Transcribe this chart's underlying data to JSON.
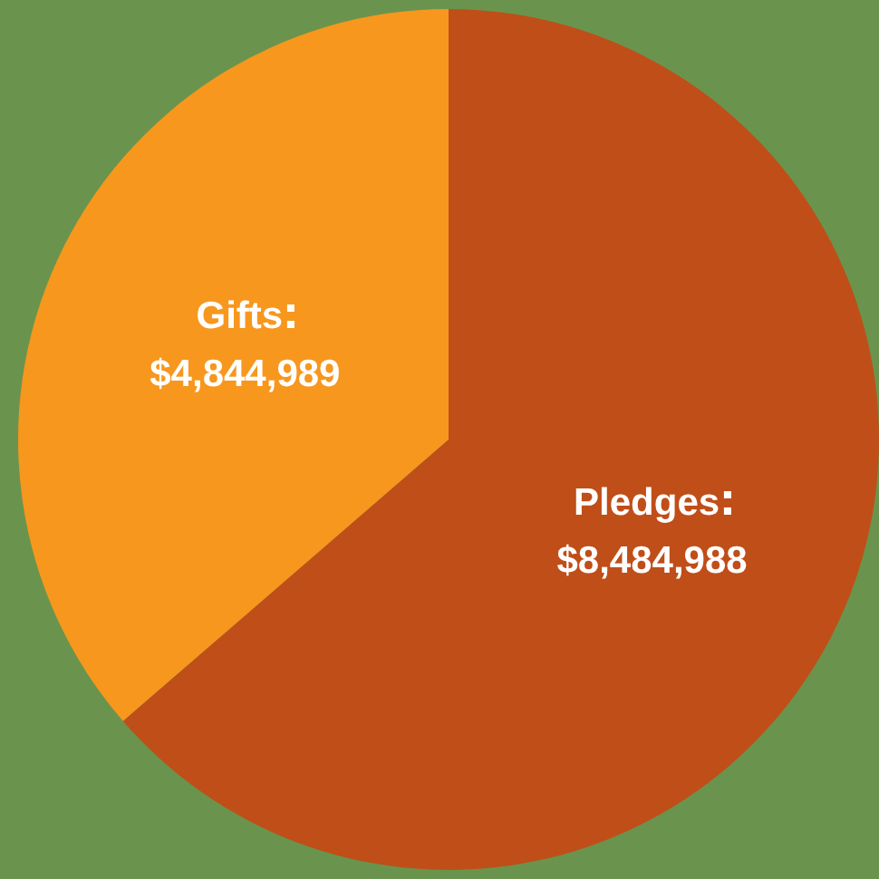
{
  "chart_data": {
    "type": "pie",
    "categories": [
      "Pledges",
      "Gifts"
    ],
    "values": [
      8484988,
      4844989
    ],
    "colors": [
      "#c04e18",
      "#f7971e"
    ],
    "value_labels": [
      "$8,484,988",
      "$4,844,989"
    ],
    "legend": false
  }
}
